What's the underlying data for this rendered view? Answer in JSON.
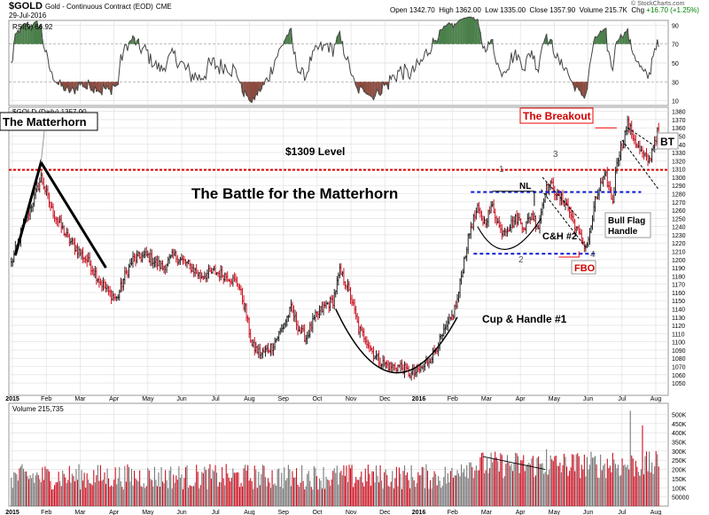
{
  "header": {
    "symbol": "$GOLD",
    "description": "Gold - Continuous Contract (EOD)",
    "exchange": "CME",
    "date": "29-Jul-2016",
    "open_label": "Open",
    "open": "1342.70",
    "high_label": "High",
    "high": "1362.00",
    "low_label": "Low",
    "low": "1335.00",
    "close_label": "Close",
    "close": "1357.90",
    "volume_label": "Volume",
    "volume": "215.7K",
    "chg_label": "Chg",
    "chg": "+16.70 (+1.25%)",
    "brand": "© StockCharts.com"
  },
  "colors": {
    "up": "#222222",
    "down": "#cc1122",
    "rsi_line": "#444444",
    "rsi_over": "#4a7f4a",
    "rsi_under": "#8b4a3e",
    "level": "#e00000",
    "blue": "#0a1ad0",
    "grid": "#dddddd"
  },
  "chart_data": [
    {
      "type": "candlestick",
      "title": "$GOLD (Daily) 1357.90",
      "ylim": [
        1035,
        1385
      ],
      "y_ticks": [
        1050,
        1060,
        1070,
        1080,
        1090,
        1100,
        1110,
        1120,
        1130,
        1140,
        1150,
        1160,
        1170,
        1180,
        1190,
        1200,
        1210,
        1220,
        1230,
        1240,
        1250,
        1260,
        1270,
        1280,
        1290,
        1300,
        1310,
        1320,
        1330,
        1340,
        1350,
        1360,
        1370,
        1380
      ],
      "x_months": [
        "2015",
        "Feb",
        "Mar",
        "Apr",
        "May",
        "Jun",
        "Jul",
        "Aug",
        "Sep",
        "Oct",
        "Nov",
        "Dec",
        "2016",
        "Feb",
        "Mar",
        "Apr",
        "May",
        "Jun",
        "Jul",
        "Aug"
      ],
      "anchors": [
        [
          0,
          1195
        ],
        [
          3,
          1210
        ],
        [
          10,
          1245
        ],
        [
          18,
          1280
        ],
        [
          22,
          1300
        ],
        [
          30,
          1260
        ],
        [
          42,
          1225
        ],
        [
          50,
          1210
        ],
        [
          58,
          1195
        ],
        [
          65,
          1175
        ],
        [
          72,
          1160
        ],
        [
          78,
          1152
        ],
        [
          84,
          1180
        ],
        [
          90,
          1200
        ],
        [
          100,
          1205
        ],
        [
          112,
          1190
        ],
        [
          120,
          1205
        ],
        [
          130,
          1195
        ],
        [
          140,
          1180
        ],
        [
          150,
          1185
        ],
        [
          160,
          1180
        ],
        [
          168,
          1170
        ],
        [
          173,
          1140
        ],
        [
          178,
          1095
        ],
        [
          185,
          1085
        ],
        [
          193,
          1095
        ],
        [
          200,
          1115
        ],
        [
          207,
          1140
        ],
        [
          213,
          1115
        ],
        [
          218,
          1105
        ],
        [
          225,
          1130
        ],
        [
          233,
          1145
        ],
        [
          238,
          1150
        ],
        [
          243,
          1185
        ],
        [
          248,
          1170
        ],
        [
          252,
          1150
        ],
        [
          257,
          1115
        ],
        [
          262,
          1105
        ],
        [
          268,
          1085
        ],
        [
          274,
          1075
        ],
        [
          280,
          1070
        ],
        [
          288,
          1070
        ],
        [
          296,
          1060
        ],
        [
          304,
          1068
        ],
        [
          312,
          1085
        ],
        [
          320,
          1110
        ],
        [
          326,
          1130
        ],
        [
          330,
          1150
        ],
        [
          335,
          1200
        ],
        [
          340,
          1240
        ],
        [
          345,
          1260
        ],
        [
          350,
          1245
        ],
        [
          356,
          1265
        ],
        [
          362,
          1235
        ],
        [
          368,
          1240
        ],
        [
          374,
          1250
        ],
        [
          380,
          1240
        ],
        [
          385,
          1255
        ],
        [
          390,
          1240
        ],
        [
          395,
          1285
        ],
        [
          400,
          1290
        ],
        [
          405,
          1275
        ],
        [
          410,
          1270
        ],
        [
          415,
          1250
        ],
        [
          420,
          1230
        ],
        [
          425,
          1215
        ],
        [
          428,
          1230
        ],
        [
          432,
          1270
        ],
        [
          436,
          1290
        ],
        [
          440,
          1300
        ],
        [
          445,
          1270
        ],
        [
          448,
          1320
        ],
        [
          452,
          1340
        ],
        [
          456,
          1365
        ],
        [
          460,
          1350
        ],
        [
          464,
          1335
        ],
        [
          468,
          1325
        ],
        [
          472,
          1320
        ],
        [
          476,
          1345
        ],
        [
          479,
          1357.9
        ]
      ],
      "level_1309": 1309,
      "neckline": 1282,
      "support": 1207,
      "annotations": {
        "matterhorn": "The Matterhorn",
        "level": "$1309 Level",
        "battle": "The Battle for the Matterhorn",
        "breakout": "The Breakout",
        "nl": "NL",
        "ch2": "C&H #2",
        "cup1": "Cup & Handle #1",
        "bullflag": "Bull Flag\nHandle",
        "fbo": "FBO",
        "bt": "BT",
        "pivot1": "1",
        "pivot2": "2",
        "pivot3": "3",
        "pivot4": "4"
      }
    },
    {
      "type": "line",
      "title": "RSI(9) 66.92",
      "ylim": [
        5,
        95
      ],
      "y_ticks": [
        10,
        30,
        50,
        70,
        90
      ],
      "bands": [
        30,
        70
      ],
      "last": 66.92
    },
    {
      "type": "bar",
      "title": "Volume 215,735",
      "ylim": [
        0,
        560000
      ],
      "y_tick_values": [
        50000,
        100000,
        150000,
        200000,
        250000,
        300000,
        350000,
        400000,
        450000,
        500000
      ],
      "y_tick_labels": [
        "50000",
        "100K",
        "150K",
        "200K",
        "250K",
        "300K",
        "350K",
        "400K",
        "450K",
        "500K"
      ],
      "last": 215735,
      "spikes": [
        [
          458,
          520000
        ],
        [
          467,
          440000
        ],
        [
          445,
          290000
        ],
        [
          396,
          310000
        ]
      ]
    }
  ]
}
